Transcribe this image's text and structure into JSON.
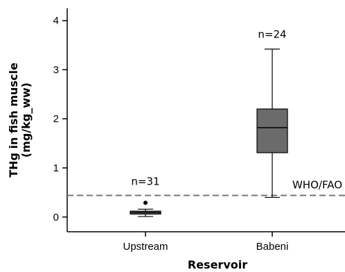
{
  "chart_data": {
    "type": "box",
    "categories": [
      "Upstream",
      "Babeni"
    ],
    "boxes": [
      {
        "category": "Upstream",
        "n_label": "n=31",
        "whisker_low": 0.01,
        "q1": 0.06,
        "median": 0.09,
        "q3": 0.12,
        "whisker_high": 0.16,
        "outliers": [
          0.29
        ],
        "fill": "#6b6b6b"
      },
      {
        "category": "Babeni",
        "n_label": "n=24",
        "whisker_low": 0.4,
        "q1": 1.31,
        "median": 1.82,
        "q3": 2.2,
        "whisker_high": 3.42,
        "outliers": [],
        "fill": "#6b6b6b"
      }
    ],
    "xlabel": "Reservoir",
    "ylabel_line1": "THg in fish muscle",
    "ylabel_line2": "(mg/kg_ww)",
    "ylim": [
      -0.3,
      4.25
    ],
    "yticks": [
      0,
      1,
      2,
      3,
      4
    ],
    "reference_line": {
      "label": "WHO/FAO",
      "value": 0.44,
      "style": "dashed",
      "color": "#777777"
    },
    "grid": false
  }
}
